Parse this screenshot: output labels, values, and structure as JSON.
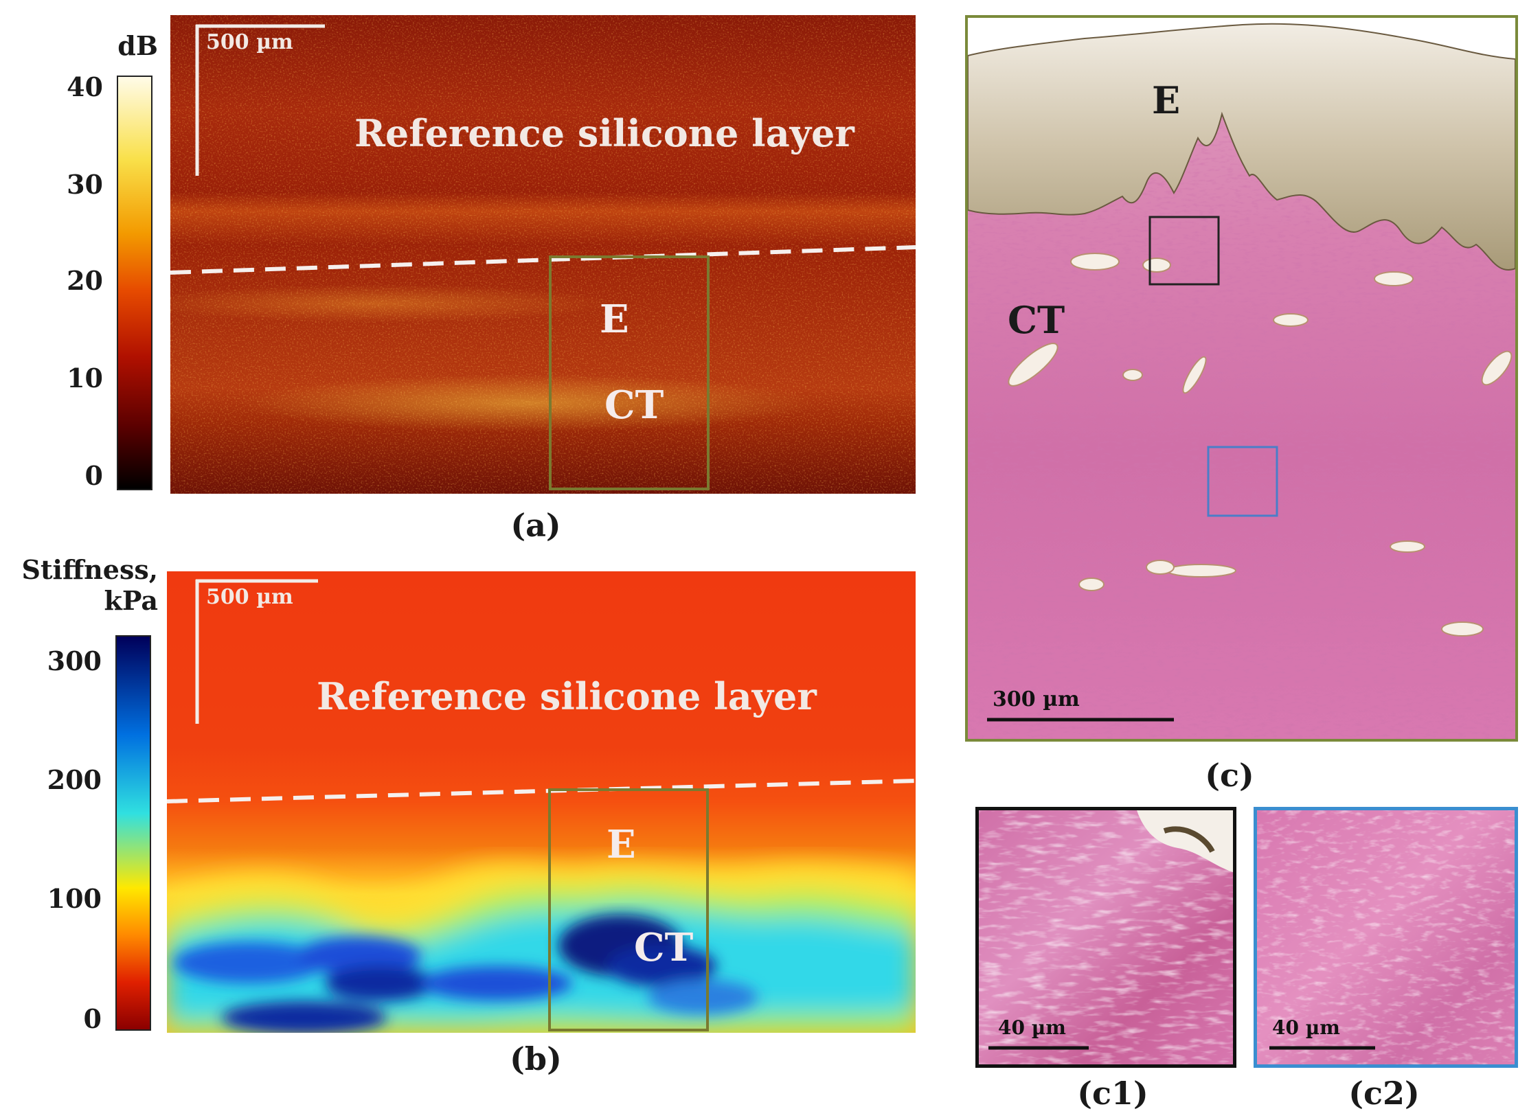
{
  "panel_a": {
    "colorbar": {
      "unit": "dB",
      "ticks": [
        "40",
        "30",
        "20",
        "10",
        "0"
      ],
      "range": [
        0,
        40
      ],
      "colormap": [
        "#000000",
        "#5a0000",
        "#b01000",
        "#e64a00",
        "#f39a00",
        "#f9e04a",
        "#fffbe8"
      ]
    },
    "scale_bar": "500 µm",
    "layer_label": "Reference silicone layer",
    "region_labels": {
      "upper": "E",
      "lower": "CT"
    },
    "panel_label": "(a)"
  },
  "panel_b": {
    "colorbar": {
      "unit_line1": "Stiffness,",
      "unit_line2": "kPa",
      "ticks": [
        "300",
        "200",
        "100",
        "0"
      ],
      "range": [
        0,
        320
      ],
      "colormap": [
        "#8b0000",
        "#e02000",
        "#ff8a00",
        "#ffe800",
        "#30e0e0",
        "#0070e0",
        "#00005a"
      ]
    },
    "scale_bar": "500 µm",
    "layer_label": "Reference silicone layer",
    "region_labels": {
      "upper": "E",
      "lower": "CT"
    },
    "panel_label": "(b)"
  },
  "panel_c": {
    "region_labels": {
      "upper": "E",
      "lower": "CT"
    },
    "scale_bar": "300 µm",
    "panel_label": "(c)",
    "frame_color": "#7a8a3a",
    "inset_c1": {
      "scale_bar": "40 µm",
      "panel_label": "(c1)",
      "frame_color": "#111111"
    },
    "inset_c2": {
      "scale_bar": "40 µm",
      "panel_label": "(c2)",
      "frame_color": "#3a8ed0"
    }
  },
  "colors": {
    "roi_box": "#7a7a30",
    "stain_pink": "#d2609a",
    "epithelium": "#c8b89a"
  }
}
